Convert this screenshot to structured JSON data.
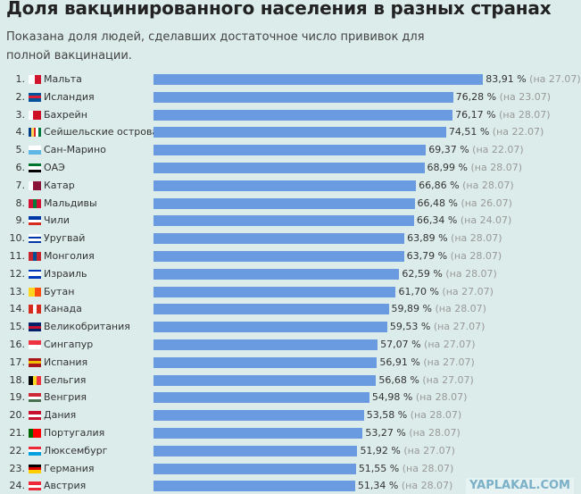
{
  "chart_data": {
    "type": "bar",
    "orientation": "horizontal",
    "title": "Доля вакцинированного населения в разных странах",
    "subtitle": "Показана доля людей, сделавших достаточное число прививок для полной вакцинации.",
    "bar_color": "#6a9ae0",
    "xlim": [
      0,
      100
    ],
    "rows": [
      {
        "rank": "1.",
        "country": "Мальта",
        "value": 83.91,
        "label": "83,91 %",
        "date": "(на 27.07)",
        "flag": [
          "#ffffff",
          "#cf142b"
        ],
        "flag_dir": "v"
      },
      {
        "rank": "2.",
        "country": "Исландия",
        "value": 76.28,
        "label": "76,28 %",
        "date": "(на 23.07)",
        "flag": [
          "#02529c",
          "#dc1e35",
          "#02529c"
        ],
        "flag_dir": "h"
      },
      {
        "rank": "3.",
        "country": "Бахрейн",
        "value": 76.17,
        "label": "76,17 %",
        "date": "(на 28.07)",
        "flag": [
          "#ffffff",
          "#ce1126",
          "#ce1126"
        ],
        "flag_dir": "v"
      },
      {
        "rank": "4.",
        "country": "Сейшельские острова",
        "value": 74.51,
        "label": "74,51 %",
        "date": "(на 22.07)",
        "flag": [
          "#003f87",
          "#fcd856",
          "#d62828",
          "#ffffff",
          "#007a3d"
        ],
        "flag_dir": "v"
      },
      {
        "rank": "5.",
        "country": "Сан-Марино",
        "value": 69.37,
        "label": "69,37 %",
        "date": "(на 22.07)",
        "flag": [
          "#ffffff",
          "#5eb6e4"
        ],
        "flag_dir": "h"
      },
      {
        "rank": "6.",
        "country": "ОАЭ",
        "value": 68.99,
        "label": "68,99 %",
        "date": "(на 28.07)",
        "flag": [
          "#00732f",
          "#ffffff",
          "#000000"
        ],
        "flag_dir": "h"
      },
      {
        "rank": "7.",
        "country": "Катар",
        "value": 66.86,
        "label": "66,86 %",
        "date": "(на 28.07)",
        "flag": [
          "#ffffff",
          "#8a1538",
          "#8a1538"
        ],
        "flag_dir": "v"
      },
      {
        "rank": "8.",
        "country": "Мальдивы",
        "value": 66.48,
        "label": "66,48 %",
        "date": "(на 26.07)",
        "flag": [
          "#d21034",
          "#007e3a",
          "#d21034"
        ],
        "flag_dir": "v"
      },
      {
        "rank": "9.",
        "country": "Чили",
        "value": 66.34,
        "label": "66,34 %",
        "date": "(на 24.07)",
        "flag": [
          "#0039a6",
          "#ffffff",
          "#d52b1e"
        ],
        "flag_dir": "h"
      },
      {
        "rank": "10.",
        "country": "Уругвай",
        "value": 63.89,
        "label": "63,89 %",
        "date": "(на 28.07)",
        "flag": [
          "#ffffff",
          "#0038a8",
          "#ffffff",
          "#0038a8"
        ],
        "flag_dir": "h"
      },
      {
        "rank": "11.",
        "country": "Монголия",
        "value": 63.79,
        "label": "63,79 %",
        "date": "(на 28.07)",
        "flag": [
          "#c4272f",
          "#015197",
          "#c4272f"
        ],
        "flag_dir": "v"
      },
      {
        "rank": "12.",
        "country": "Израиль",
        "value": 62.59,
        "label": "62,59 %",
        "date": "(на 28.07)",
        "flag": [
          "#0038b8",
          "#ffffff",
          "#ffffff",
          "#0038b8"
        ],
        "flag_dir": "h"
      },
      {
        "rank": "13.",
        "country": "Бутан",
        "value": 61.7,
        "label": "61,70 %",
        "date": "(на 27.07)",
        "flag": [
          "#ffd520",
          "#ff4e12"
        ],
        "flag_dir": "v"
      },
      {
        "rank": "14.",
        "country": "Канада",
        "value": 59.89,
        "label": "59,89 %",
        "date": "(на 28.07)",
        "flag": [
          "#d52b1e",
          "#ffffff",
          "#d52b1e"
        ],
        "flag_dir": "v"
      },
      {
        "rank": "15.",
        "country": "Великобритания",
        "value": 59.53,
        "label": "59,53 %",
        "date": "(на 27.07)",
        "flag": [
          "#012169",
          "#c8102e",
          "#012169"
        ],
        "flag_dir": "h"
      },
      {
        "rank": "16.",
        "country": "Сингапур",
        "value": 57.07,
        "label": "57,07 %",
        "date": "(на 27.07)",
        "flag": [
          "#ef3340",
          "#ffffff"
        ],
        "flag_dir": "h"
      },
      {
        "rank": "17.",
        "country": "Испания",
        "value": 56.91,
        "label": "56,91 %",
        "date": "(на 27.07)",
        "flag": [
          "#aa151b",
          "#f1bf00",
          "#aa151b"
        ],
        "flag_dir": "h"
      },
      {
        "rank": "18.",
        "country": "Бельгия",
        "value": 56.68,
        "label": "56,68 %",
        "date": "(на 27.07)",
        "flag": [
          "#000000",
          "#fdda24",
          "#ef3340"
        ],
        "flag_dir": "v"
      },
      {
        "rank": "19.",
        "country": "Венгрия",
        "value": 54.98,
        "label": "54,98 %",
        "date": "(на 28.07)",
        "flag": [
          "#ce2939",
          "#ffffff",
          "#477050"
        ],
        "flag_dir": "h"
      },
      {
        "rank": "20.",
        "country": "Дания",
        "value": 53.58,
        "label": "53,58 %",
        "date": "(на 28.07)",
        "flag": [
          "#c8102e",
          "#ffffff",
          "#c8102e"
        ],
        "flag_dir": "h"
      },
      {
        "rank": "21.",
        "country": "Португалия",
        "value": 53.27,
        "label": "53,27 %",
        "date": "(на 28.07)",
        "flag": [
          "#006600",
          "#ff0000",
          "#ff0000"
        ],
        "flag_dir": "v"
      },
      {
        "rank": "22.",
        "country": "Люксембург",
        "value": 51.92,
        "label": "51,92 %",
        "date": "(на 27.07)",
        "flag": [
          "#ed2939",
          "#ffffff",
          "#00a1de"
        ],
        "flag_dir": "h"
      },
      {
        "rank": "23.",
        "country": "Германия",
        "value": 51.55,
        "label": "51,55 %",
        "date": "(на 28.07)",
        "flag": [
          "#000000",
          "#dd0000",
          "#ffce00"
        ],
        "flag_dir": "h"
      },
      {
        "rank": "24.",
        "country": "Австрия",
        "value": 51.34,
        "label": "51,34 %",
        "date": "(на 28.07)",
        "flag": [
          "#ed2939",
          "#ffffff",
          "#ed2939"
        ],
        "flag_dir": "h"
      }
    ]
  },
  "watermark": "YAPLAKAL.COM"
}
